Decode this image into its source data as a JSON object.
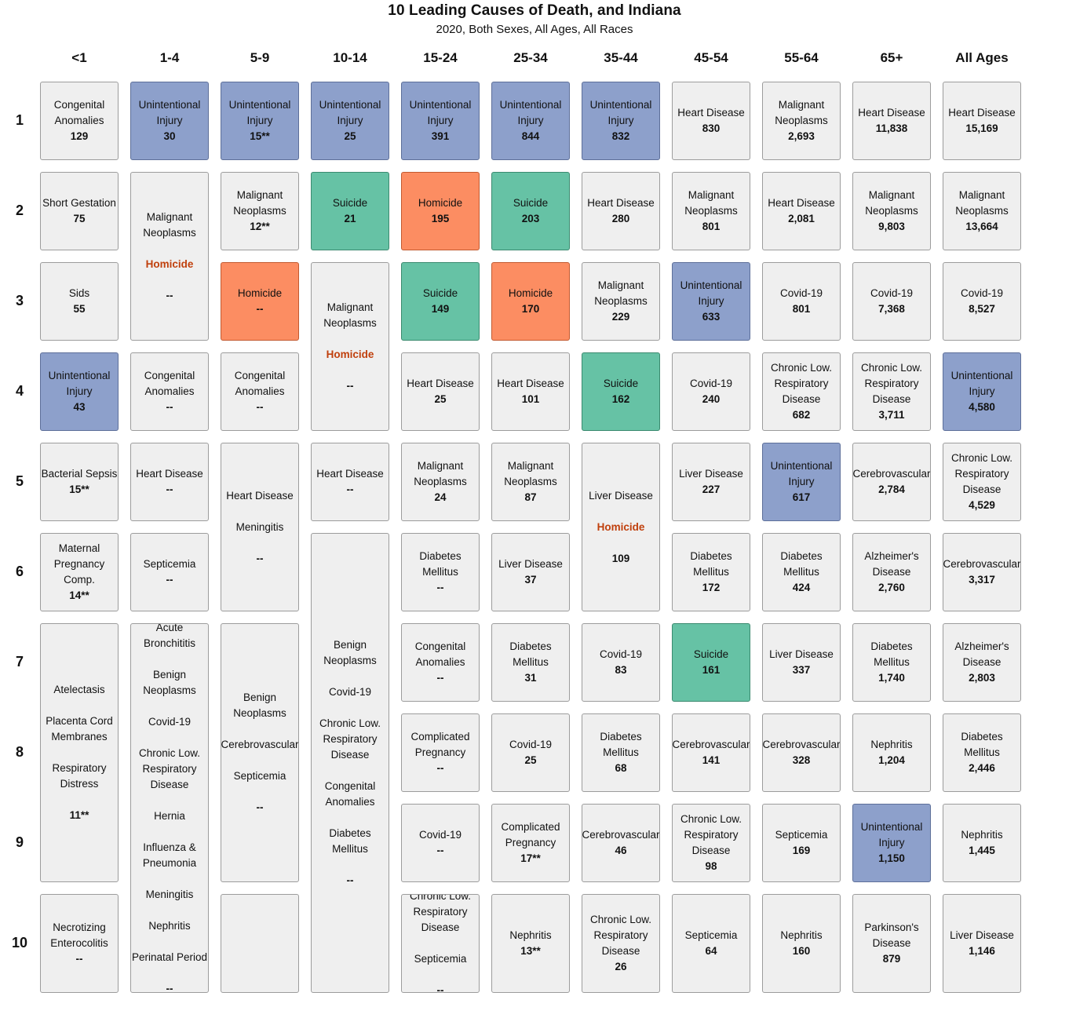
{
  "chart_data": {
    "type": "table",
    "title": "10 Leading Causes of Death, and Indiana",
    "subtitle": "2020, Both Sexes, All Ages, All Races",
    "columns": [
      "<1",
      "1-4",
      "5-9",
      "10-14",
      "15-24",
      "25-34",
      "35-44",
      "45-54",
      "55-64",
      "65+",
      "All Ages"
    ],
    "ranks": [
      "1",
      "2",
      "3",
      "4",
      "5",
      "6",
      "7",
      "8",
      "9",
      "10"
    ],
    "colors": {
      "unintentional_injury": "#8da0cb",
      "suicide": "#66c2a5",
      "homicide": "#fc8d62",
      "default": "#efefef",
      "homicide_text": "#c0400d"
    },
    "cells": [
      {
        "col": 0,
        "row": 0,
        "span": 1,
        "name": "Congenital\nAnomalies",
        "value": "129"
      },
      {
        "col": 0,
        "row": 1,
        "span": 1,
        "name": "Short Gestation",
        "value": "75"
      },
      {
        "col": 0,
        "row": 2,
        "span": 1,
        "name": "Sids",
        "value": "55"
      },
      {
        "col": 0,
        "row": 3,
        "span": 1,
        "name": "Unintentional\nInjury",
        "value": "43",
        "category": "injury"
      },
      {
        "col": 0,
        "row": 4,
        "span": 1,
        "name": "Bacterial Sepsis",
        "value": "15**"
      },
      {
        "col": 0,
        "row": 5,
        "span": 1,
        "name": "Maternal\nPregnancy\nComp.",
        "value": "14**"
      },
      {
        "col": 0,
        "row": 6,
        "span": 3,
        "tied": [
          "Atelectasis",
          "Placenta Cord\nMembranes",
          "Respiratory\nDistress"
        ],
        "value": "11**"
      },
      {
        "col": 0,
        "row": 9,
        "span": 1,
        "name": "Necrotizing\nEnterocolitis",
        "value": "--"
      },
      {
        "col": 1,
        "row": 0,
        "span": 1,
        "name": "Unintentional\nInjury",
        "value": "30",
        "category": "injury"
      },
      {
        "col": 1,
        "row": 1,
        "span": 2,
        "tied": [
          "Malignant\nNeoplasms",
          "Homicide"
        ],
        "highlight": "Homicide",
        "value": "--"
      },
      {
        "col": 1,
        "row": 3,
        "span": 1,
        "name": "Congenital\nAnomalies",
        "value": "--"
      },
      {
        "col": 1,
        "row": 4,
        "span": 1,
        "name": "Heart Disease",
        "value": "--"
      },
      {
        "col": 1,
        "row": 5,
        "span": 1,
        "name": "Septicemia",
        "value": "--"
      },
      {
        "col": 1,
        "row": 6,
        "span": 4,
        "tied": [
          "Acute\nBronchititis",
          "Benign\nNeoplasms",
          "Covid-19",
          "Chronic Low.\nRespiratory\nDisease",
          "Hernia",
          "Influenza &\nPneumonia",
          "Meningitis",
          "Nephritis",
          "Perinatal Period"
        ],
        "value": "--"
      },
      {
        "col": 2,
        "row": 0,
        "span": 1,
        "name": "Unintentional\nInjury",
        "value": "15**",
        "category": "injury"
      },
      {
        "col": 2,
        "row": 1,
        "span": 1,
        "name": "Malignant\nNeoplasms",
        "value": "12**"
      },
      {
        "col": 2,
        "row": 2,
        "span": 1,
        "name": "Homicide",
        "value": "--",
        "category": "homicide"
      },
      {
        "col": 2,
        "row": 3,
        "span": 1,
        "name": "Congenital\nAnomalies",
        "value": "--"
      },
      {
        "col": 2,
        "row": 4,
        "span": 2,
        "tied": [
          "Heart Disease",
          "Meningitis"
        ],
        "value": "--"
      },
      {
        "col": 2,
        "row": 6,
        "span": 3,
        "tied": [
          "Benign\nNeoplasms",
          "Cerebrovascular",
          "Septicemia"
        ],
        "value": "--"
      },
      {
        "col": 2,
        "row": 9,
        "span": 1,
        "name": "",
        "value": ""
      },
      {
        "col": 3,
        "row": 0,
        "span": 1,
        "name": "Unintentional\nInjury",
        "value": "25",
        "category": "injury"
      },
      {
        "col": 3,
        "row": 1,
        "span": 1,
        "name": "Suicide",
        "value": "21",
        "category": "suicide"
      },
      {
        "col": 3,
        "row": 2,
        "span": 2,
        "tied": [
          "Malignant\nNeoplasms",
          "Homicide"
        ],
        "highlight": "Homicide",
        "value": "--"
      },
      {
        "col": 3,
        "row": 4,
        "span": 1,
        "name": "Heart Disease",
        "value": "--"
      },
      {
        "col": 3,
        "row": 5,
        "span": 5,
        "tied": [
          "Benign\nNeoplasms",
          "Covid-19",
          "Chronic Low.\nRespiratory\nDisease",
          "Congenital\nAnomalies",
          "Diabetes\nMellitus"
        ],
        "value": "--"
      },
      {
        "col": 4,
        "row": 0,
        "span": 1,
        "name": "Unintentional\nInjury",
        "value": "391",
        "category": "injury"
      },
      {
        "col": 4,
        "row": 1,
        "span": 1,
        "name": "Homicide",
        "value": "195",
        "category": "homicide"
      },
      {
        "col": 4,
        "row": 2,
        "span": 1,
        "name": "Suicide",
        "value": "149",
        "category": "suicide"
      },
      {
        "col": 4,
        "row": 3,
        "span": 1,
        "name": "Heart Disease",
        "value": "25"
      },
      {
        "col": 4,
        "row": 4,
        "span": 1,
        "name": "Malignant\nNeoplasms",
        "value": "24"
      },
      {
        "col": 4,
        "row": 5,
        "span": 1,
        "name": "Diabetes\nMellitus",
        "value": "--"
      },
      {
        "col": 4,
        "row": 6,
        "span": 1,
        "name": "Congenital\nAnomalies",
        "value": "--"
      },
      {
        "col": 4,
        "row": 7,
        "span": 1,
        "name": "Complicated\nPregnancy",
        "value": "--"
      },
      {
        "col": 4,
        "row": 8,
        "span": 1,
        "name": "Covid-19",
        "value": "--"
      },
      {
        "col": 4,
        "row": 9,
        "span": 1,
        "tied": [
          "Chronic Low.\nRespiratory\nDisease",
          "Septicemia"
        ],
        "value": "--"
      },
      {
        "col": 5,
        "row": 0,
        "span": 1,
        "name": "Unintentional\nInjury",
        "value": "844",
        "category": "injury"
      },
      {
        "col": 5,
        "row": 1,
        "span": 1,
        "name": "Suicide",
        "value": "203",
        "category": "suicide"
      },
      {
        "col": 5,
        "row": 2,
        "span": 1,
        "name": "Homicide",
        "value": "170",
        "category": "homicide"
      },
      {
        "col": 5,
        "row": 3,
        "span": 1,
        "name": "Heart Disease",
        "value": "101"
      },
      {
        "col": 5,
        "row": 4,
        "span": 1,
        "name": "Malignant\nNeoplasms",
        "value": "87"
      },
      {
        "col": 5,
        "row": 5,
        "span": 1,
        "name": "Liver Disease",
        "value": "37"
      },
      {
        "col": 5,
        "row": 6,
        "span": 1,
        "name": "Diabetes\nMellitus",
        "value": "31"
      },
      {
        "col": 5,
        "row": 7,
        "span": 1,
        "name": "Covid-19",
        "value": "25"
      },
      {
        "col": 5,
        "row": 8,
        "span": 1,
        "name": "Complicated\nPregnancy",
        "value": "17**"
      },
      {
        "col": 5,
        "row": 9,
        "span": 1,
        "name": "Nephritis",
        "value": "13**"
      },
      {
        "col": 6,
        "row": 0,
        "span": 1,
        "name": "Unintentional\nInjury",
        "value": "832",
        "category": "injury"
      },
      {
        "col": 6,
        "row": 1,
        "span": 1,
        "name": "Heart Disease",
        "value": "280"
      },
      {
        "col": 6,
        "row": 2,
        "span": 1,
        "name": "Malignant\nNeoplasms",
        "value": "229"
      },
      {
        "col": 6,
        "row": 3,
        "span": 1,
        "name": "Suicide",
        "value": "162",
        "category": "suicide"
      },
      {
        "col": 6,
        "row": 4,
        "span": 2,
        "tied": [
          "Liver Disease",
          "Homicide"
        ],
        "highlight": "Homicide",
        "value": "109"
      },
      {
        "col": 6,
        "row": 6,
        "span": 1,
        "name": "Covid-19",
        "value": "83"
      },
      {
        "col": 6,
        "row": 7,
        "span": 1,
        "name": "Diabetes\nMellitus",
        "value": "68"
      },
      {
        "col": 6,
        "row": 8,
        "span": 1,
        "name": "Cerebrovascular",
        "value": "46"
      },
      {
        "col": 6,
        "row": 9,
        "span": 1,
        "name": "Chronic Low.\nRespiratory\nDisease",
        "value": "26"
      },
      {
        "col": 7,
        "row": 0,
        "span": 1,
        "name": "Heart Disease",
        "value": "830"
      },
      {
        "col": 7,
        "row": 1,
        "span": 1,
        "name": "Malignant\nNeoplasms",
        "value": "801"
      },
      {
        "col": 7,
        "row": 2,
        "span": 1,
        "name": "Unintentional\nInjury",
        "value": "633",
        "category": "injury"
      },
      {
        "col": 7,
        "row": 3,
        "span": 1,
        "name": "Covid-19",
        "value": "240"
      },
      {
        "col": 7,
        "row": 4,
        "span": 1,
        "name": "Liver Disease",
        "value": "227"
      },
      {
        "col": 7,
        "row": 5,
        "span": 1,
        "name": "Diabetes\nMellitus",
        "value": "172"
      },
      {
        "col": 7,
        "row": 6,
        "span": 1,
        "name": "Suicide",
        "value": "161",
        "category": "suicide"
      },
      {
        "col": 7,
        "row": 7,
        "span": 1,
        "name": "Cerebrovascular",
        "value": "141"
      },
      {
        "col": 7,
        "row": 8,
        "span": 1,
        "name": "Chronic Low.\nRespiratory\nDisease",
        "value": "98"
      },
      {
        "col": 7,
        "row": 9,
        "span": 1,
        "name": "Septicemia",
        "value": "64"
      },
      {
        "col": 8,
        "row": 0,
        "span": 1,
        "name": "Malignant\nNeoplasms",
        "value": "2,693"
      },
      {
        "col": 8,
        "row": 1,
        "span": 1,
        "name": "Heart Disease",
        "value": "2,081"
      },
      {
        "col": 8,
        "row": 2,
        "span": 1,
        "name": "Covid-19",
        "value": "801"
      },
      {
        "col": 8,
        "row": 3,
        "span": 1,
        "name": "Chronic Low.\nRespiratory\nDisease",
        "value": "682"
      },
      {
        "col": 8,
        "row": 4,
        "span": 1,
        "name": "Unintentional\nInjury",
        "value": "617",
        "category": "injury"
      },
      {
        "col": 8,
        "row": 5,
        "span": 1,
        "name": "Diabetes\nMellitus",
        "value": "424"
      },
      {
        "col": 8,
        "row": 6,
        "span": 1,
        "name": "Liver Disease",
        "value": "337"
      },
      {
        "col": 8,
        "row": 7,
        "span": 1,
        "name": "Cerebrovascular",
        "value": "328"
      },
      {
        "col": 8,
        "row": 8,
        "span": 1,
        "name": "Septicemia",
        "value": "169"
      },
      {
        "col": 8,
        "row": 9,
        "span": 1,
        "name": "Nephritis",
        "value": "160"
      },
      {
        "col": 9,
        "row": 0,
        "span": 1,
        "name": "Heart Disease",
        "value": "11,838"
      },
      {
        "col": 9,
        "row": 1,
        "span": 1,
        "name": "Malignant\nNeoplasms",
        "value": "9,803"
      },
      {
        "col": 9,
        "row": 2,
        "span": 1,
        "name": "Covid-19",
        "value": "7,368"
      },
      {
        "col": 9,
        "row": 3,
        "span": 1,
        "name": "Chronic Low.\nRespiratory\nDisease",
        "value": "3,711"
      },
      {
        "col": 9,
        "row": 4,
        "span": 1,
        "name": "Cerebrovascular",
        "value": "2,784"
      },
      {
        "col": 9,
        "row": 5,
        "span": 1,
        "name": "Alzheimer's\nDisease",
        "value": "2,760"
      },
      {
        "col": 9,
        "row": 6,
        "span": 1,
        "name": "Diabetes\nMellitus",
        "value": "1,740"
      },
      {
        "col": 9,
        "row": 7,
        "span": 1,
        "name": "Nephritis",
        "value": "1,204"
      },
      {
        "col": 9,
        "row": 8,
        "span": 1,
        "name": "Unintentional\nInjury",
        "value": "1,150",
        "category": "injury"
      },
      {
        "col": 9,
        "row": 9,
        "span": 1,
        "name": "Parkinson's\nDisease",
        "value": "879"
      },
      {
        "col": 10,
        "row": 0,
        "span": 1,
        "name": "Heart Disease",
        "value": "15,169"
      },
      {
        "col": 10,
        "row": 1,
        "span": 1,
        "name": "Malignant\nNeoplasms",
        "value": "13,664"
      },
      {
        "col": 10,
        "row": 2,
        "span": 1,
        "name": "Covid-19",
        "value": "8,527"
      },
      {
        "col": 10,
        "row": 3,
        "span": 1,
        "name": "Unintentional\nInjury",
        "value": "4,580",
        "category": "injury"
      },
      {
        "col": 10,
        "row": 4,
        "span": 1,
        "name": "Chronic Low.\nRespiratory\nDisease",
        "value": "4,529"
      },
      {
        "col": 10,
        "row": 5,
        "span": 1,
        "name": "Cerebrovascular",
        "value": "3,317"
      },
      {
        "col": 10,
        "row": 6,
        "span": 1,
        "name": "Alzheimer's\nDisease",
        "value": "2,803"
      },
      {
        "col": 10,
        "row": 7,
        "span": 1,
        "name": "Diabetes\nMellitus",
        "value": "2,446"
      },
      {
        "col": 10,
        "row": 8,
        "span": 1,
        "name": "Nephritis",
        "value": "1,445"
      },
      {
        "col": 10,
        "row": 9,
        "span": 1,
        "name": "Liver Disease",
        "value": "1,146"
      }
    ]
  }
}
